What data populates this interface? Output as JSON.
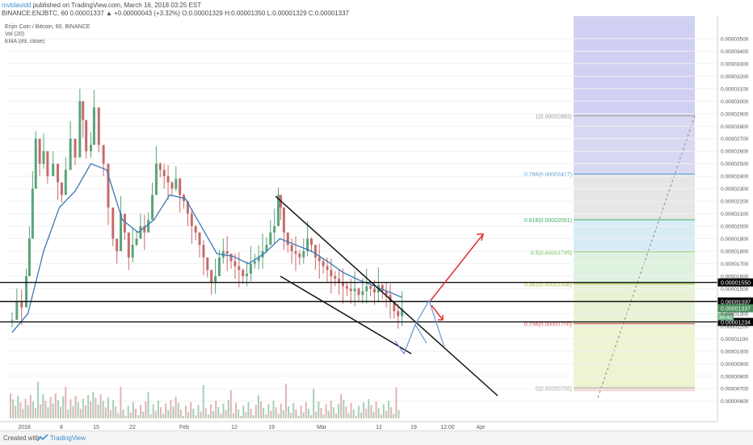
{
  "header": {
    "user": "mvtdavidd",
    "published": "published on TradingView.com, March 16, 2018 03:25 EST",
    "symbol_line": "BINANCE:ENJBTC, 60  0.00001337 ▲ +0.00000043 (+3.32%)  O:0.00001329  H:0.00001350  L:0.00001329  C:0.00001337"
  },
  "legend": {
    "title": "Enjin Coin / Bitcoin, 60, BINANCE",
    "vol": "Vol (20)",
    "ema": "EMA (89, close)"
  },
  "footer": {
    "created": "Created with",
    "brand": "TradingView"
  },
  "chart_data": {
    "type": "candlestick",
    "colors": {
      "up": "#5aa47a",
      "down": "#c66b6b",
      "ema": "#3a78b8",
      "price_tag": "#4a8f5a"
    },
    "y_ticks": [
      "0.00003500",
      "0.00003400",
      "0.00003300",
      "0.00003200",
      "0.00003100",
      "0.00003000",
      "0.00002900",
      "0.00002800",
      "0.00002700",
      "0.00002600",
      "0.00002500",
      "0.00002400",
      "0.00002300",
      "0.00002200",
      "0.00002100",
      "0.00002000",
      "0.00001900",
      "0.00001800",
      "0.00001700",
      "0.00001600",
      "0.00001500",
      "0.00001400",
      "0.00001300",
      "0.00001200",
      "0.00001100",
      "0.00001000",
      "0.00000900",
      "0.00000800",
      "0.00000700",
      "0.00000600"
    ],
    "ylim": [
      5.4e-06,
      3.59e-05
    ],
    "x_ticks": [
      "2018",
      "8",
      "15",
      "22",
      "Feb",
      "12",
      "19",
      "Mar",
      "12",
      "19",
      "12:00",
      "Apr"
    ],
    "price_series": [
      {
        "t": 0,
        "p": 1.25e-05
      },
      {
        "t": 6,
        "p": 1.4e-05
      },
      {
        "t": 12,
        "p": 1.35e-05
      },
      {
        "t": 18,
        "p": 1.6e-05
      },
      {
        "t": 22,
        "p": 1.9e-05
      },
      {
        "t": 26,
        "p": 2.3e-05
      },
      {
        "t": 30,
        "p": 2.7e-05
      },
      {
        "t": 35,
        "p": 2.5e-05
      },
      {
        "t": 40,
        "p": 2.6e-05
      },
      {
        "t": 45,
        "p": 2.4e-05
      },
      {
        "t": 52,
        "p": 2.5e-05
      },
      {
        "t": 58,
        "p": 2.35e-05
      },
      {
        "t": 63,
        "p": 2.25e-05
      },
      {
        "t": 68,
        "p": 2.45e-05
      },
      {
        "t": 74,
        "p": 2.7e-05
      },
      {
        "t": 80,
        "p": 2.55e-05
      },
      {
        "t": 86,
        "p": 3e-05
      },
      {
        "t": 90,
        "p": 2.85e-05
      },
      {
        "t": 94,
        "p": 2.6e-05
      },
      {
        "t": 100,
        "p": 2.65e-05
      },
      {
        "t": 104,
        "p": 2.95e-05
      },
      {
        "t": 110,
        "p": 2.65e-05
      },
      {
        "t": 116,
        "p": 2.5e-05
      },
      {
        "t": 122,
        "p": 2.15e-05
      },
      {
        "t": 128,
        "p": 1.9e-05
      },
      {
        "t": 133,
        "p": 1.8e-05
      },
      {
        "t": 138,
        "p": 2.1e-05
      },
      {
        "t": 143,
        "p": 1.95e-05
      },
      {
        "t": 148,
        "p": 1.75e-05
      },
      {
        "t": 153,
        "p": 1.85e-05
      },
      {
        "t": 158,
        "p": 1.9e-05
      },
      {
        "t": 163,
        "p": 2e-05
      },
      {
        "t": 168,
        "p": 1.95e-05
      },
      {
        "t": 173,
        "p": 2.05e-05
      },
      {
        "t": 178,
        "p": 2.25e-05
      },
      {
        "t": 183,
        "p": 2.5e-05
      },
      {
        "t": 188,
        "p": 2.45e-05
      },
      {
        "t": 193,
        "p": 2.4e-05
      },
      {
        "t": 198,
        "p": 2.35e-05
      },
      {
        "t": 203,
        "p": 2.3e-05
      },
      {
        "t": 208,
        "p": 2.38e-05
      },
      {
        "t": 213,
        "p": 2.25e-05
      },
      {
        "t": 218,
        "p": 2.2e-05
      },
      {
        "t": 223,
        "p": 2.1e-05
      },
      {
        "t": 228,
        "p": 2e-05
      },
      {
        "t": 233,
        "p": 1.95e-05
      },
      {
        "t": 238,
        "p": 1.85e-05
      },
      {
        "t": 243,
        "p": 1.75e-05
      },
      {
        "t": 248,
        "p": 1.65e-05
      },
      {
        "t": 253,
        "p": 1.55e-05
      },
      {
        "t": 258,
        "p": 1.6e-05
      },
      {
        "t": 263,
        "p": 1.75e-05
      },
      {
        "t": 268,
        "p": 1.8e-05
      },
      {
        "t": 273,
        "p": 1.78e-05
      },
      {
        "t": 278,
        "p": 1.72e-05
      },
      {
        "t": 283,
        "p": 1.68e-05
      },
      {
        "t": 288,
        "p": 1.65e-05
      },
      {
        "t": 293,
        "p": 1.6e-05
      },
      {
        "t": 298,
        "p": 1.62e-05
      },
      {
        "t": 303,
        "p": 1.7e-05
      },
      {
        "t": 308,
        "p": 1.72e-05
      },
      {
        "t": 313,
        "p": 1.75e-05
      },
      {
        "t": 318,
        "p": 1.8e-05
      },
      {
        "t": 323,
        "p": 1.85e-05
      },
      {
        "t": 328,
        "p": 1.95e-05
      },
      {
        "t": 333,
        "p": 2e-05
      },
      {
        "t": 338,
        "p": 2.25e-05
      },
      {
        "t": 341,
        "p": 2.15e-05
      },
      {
        "t": 345,
        "p": 1.95e-05
      },
      {
        "t": 350,
        "p": 1.85e-05
      },
      {
        "t": 355,
        "p": 1.8e-05
      },
      {
        "t": 360,
        "p": 1.78e-05
      },
      {
        "t": 365,
        "p": 1.75e-05
      },
      {
        "t": 370,
        "p": 1.8e-05
      },
      {
        "t": 375,
        "p": 1.9e-05
      },
      {
        "t": 380,
        "p": 1.85e-05
      },
      {
        "t": 385,
        "p": 1.75e-05
      },
      {
        "t": 390,
        "p": 1.72e-05
      },
      {
        "t": 395,
        "p": 1.68e-05
      },
      {
        "t": 400,
        "p": 1.65e-05
      },
      {
        "t": 405,
        "p": 1.6e-05
      },
      {
        "t": 410,
        "p": 1.58e-05
      },
      {
        "t": 415,
        "p": 1.55e-05
      },
      {
        "t": 420,
        "p": 1.52e-05
      },
      {
        "t": 425,
        "p": 1.5e-05
      },
      {
        "t": 430,
        "p": 1.48e-05
      },
      {
        "t": 435,
        "p": 1.5e-05
      },
      {
        "t": 440,
        "p": 1.45e-05
      },
      {
        "t": 445,
        "p": 1.48e-05
      },
      {
        "t": 450,
        "p": 1.52e-05
      },
      {
        "t": 455,
        "p": 1.5e-05
      },
      {
        "t": 460,
        "p": 1.47e-05
      },
      {
        "t": 465,
        "p": 1.53e-05
      },
      {
        "t": 470,
        "p": 1.48e-05
      },
      {
        "t": 475,
        "p": 1.45e-05
      },
      {
        "t": 480,
        "p": 1.4e-05
      },
      {
        "t": 485,
        "p": 1.32e-05
      },
      {
        "t": 490,
        "p": 1.28e-05
      },
      {
        "t": 495,
        "p": 1.34e-05
      }
    ],
    "ema_series": [
      {
        "t": 0,
        "p": 1.15e-05
      },
      {
        "t": 20,
        "p": 1.3e-05
      },
      {
        "t": 40,
        "p": 1.8e-05
      },
      {
        "t": 60,
        "p": 2.15e-05
      },
      {
        "t": 80,
        "p": 2.28e-05
      },
      {
        "t": 100,
        "p": 2.5e-05
      },
      {
        "t": 120,
        "p": 2.45e-05
      },
      {
        "t": 140,
        "p": 2.05e-05
      },
      {
        "t": 160,
        "p": 1.95e-05
      },
      {
        "t": 180,
        "p": 2.05e-05
      },
      {
        "t": 200,
        "p": 2.25e-05
      },
      {
        "t": 220,
        "p": 2.22e-05
      },
      {
        "t": 240,
        "p": 2e-05
      },
      {
        "t": 260,
        "p": 1.78e-05
      },
      {
        "t": 280,
        "p": 1.76e-05
      },
      {
        "t": 300,
        "p": 1.7e-05
      },
      {
        "t": 320,
        "p": 1.78e-05
      },
      {
        "t": 340,
        "p": 1.9e-05
      },
      {
        "t": 360,
        "p": 1.85e-05
      },
      {
        "t": 380,
        "p": 1.8e-05
      },
      {
        "t": 400,
        "p": 1.72e-05
      },
      {
        "t": 420,
        "p": 1.63e-05
      },
      {
        "t": 440,
        "p": 1.57e-05
      },
      {
        "t": 460,
        "p": 1.52e-05
      },
      {
        "t": 480,
        "p": 1.47e-05
      },
      {
        "t": 495,
        "p": 1.43e-05
      }
    ],
    "horizontal_lines": [
      {
        "name": "resistance",
        "value": 1.55e-05,
        "label": "0.00001550"
      },
      {
        "name": "mid",
        "value": 1.397e-05,
        "label": "0.00001397"
      },
      {
        "name": "support",
        "value": 1.234e-05,
        "label": "0.00001234"
      }
    ],
    "current_price_label": "0.00001337",
    "current_price": 1.337e-05,
    "volume_label": "34.42",
    "fibonacci": [
      {
        "level": "1",
        "text": "1(0.00002883)",
        "value": 2.883e-05,
        "color": "#9a9a9a",
        "fill": "#d8d8f2"
      },
      {
        "level": "0.786",
        "text": "0.786(0.00002417)",
        "value": 2.417e-05,
        "color": "#4d9bd6",
        "fill": "#e6e6e6"
      },
      {
        "level": "0.618",
        "text": "0.618(0.00002051)",
        "value": 2.051e-05,
        "color": "#3fae6c",
        "fill": "#d8ecf6"
      },
      {
        "level": "0.5",
        "text": "0.5(0.00001795)",
        "value": 1.795e-05,
        "color": "#6bbd4a",
        "fill": "#dff2df"
      },
      {
        "level": "0.382",
        "text": "0.382(0.00001538)",
        "value": 1.538e-05,
        "color": "#a8b83a",
        "fill": "#e8f3d6"
      },
      {
        "level": "0.236",
        "text": "0.236(0.00001220)",
        "value": 1.22e-05,
        "color": "#d94a4a",
        "fill": "#eef3d2"
      },
      {
        "level": "0",
        "text": "0(0.00000706)",
        "value": 7.06e-06,
        "color": "#9a9a9a",
        "fill": "#f3d6d6"
      }
    ],
    "fib_top_fill": "#d0d0f2",
    "x_range": [
      0,
      600
    ]
  }
}
